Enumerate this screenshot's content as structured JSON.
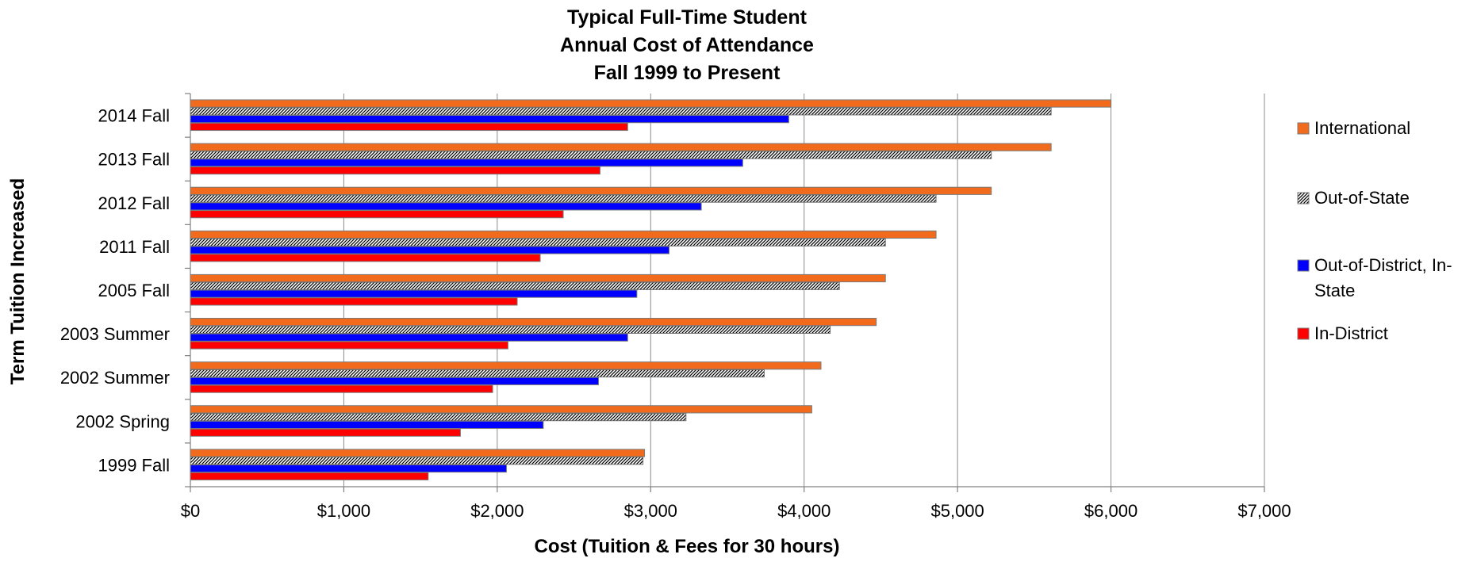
{
  "chart_data": {
    "type": "bar",
    "orientation": "horizontal",
    "title_lines": [
      "Typical Full-Time Student",
      "Annual Cost of Attendance",
      "Fall 1999 to Present"
    ],
    "xlabel": "Cost (Tuition & Fees for 30 hours)",
    "ylabel": "Term Tuition Increased",
    "xlim": [
      0,
      7000
    ],
    "x_ticks": [
      "$0",
      "$1,000",
      "$2,000",
      "$3,000",
      "$4,000",
      "$5,000",
      "$6,000",
      "$7,000"
    ],
    "grid": "vertical",
    "legend_position": "right",
    "categories": [
      "2014 Fall",
      "2013 Fall",
      "2012 Fall",
      "2011 Fall",
      "2005 Fall",
      "2003 Summer",
      "2002 Summer",
      "2002 Spring",
      "1999 Fall"
    ],
    "series": [
      {
        "name": "International",
        "color": "#f26b1d",
        "pattern": "solid",
        "values": [
          6000,
          5610,
          5220,
          4860,
          4530,
          4470,
          4110,
          4050,
          2960
        ]
      },
      {
        "name": "Out-of-State",
        "color": "#7f7f7f",
        "pattern": "hatch",
        "values": [
          5610,
          5220,
          4860,
          4530,
          4230,
          4170,
          3740,
          3230,
          2950
        ]
      },
      {
        "name": "Out-of-District, In-State",
        "color": "#0000ff",
        "pattern": "solid",
        "values": [
          3900,
          3600,
          3330,
          3120,
          2910,
          2850,
          2660,
          2300,
          2060
        ]
      },
      {
        "name": "In-District",
        "color": "#ff0000",
        "pattern": "solid",
        "values": [
          2850,
          2670,
          2430,
          2280,
          2130,
          2070,
          1970,
          1760,
          1550
        ]
      }
    ]
  }
}
